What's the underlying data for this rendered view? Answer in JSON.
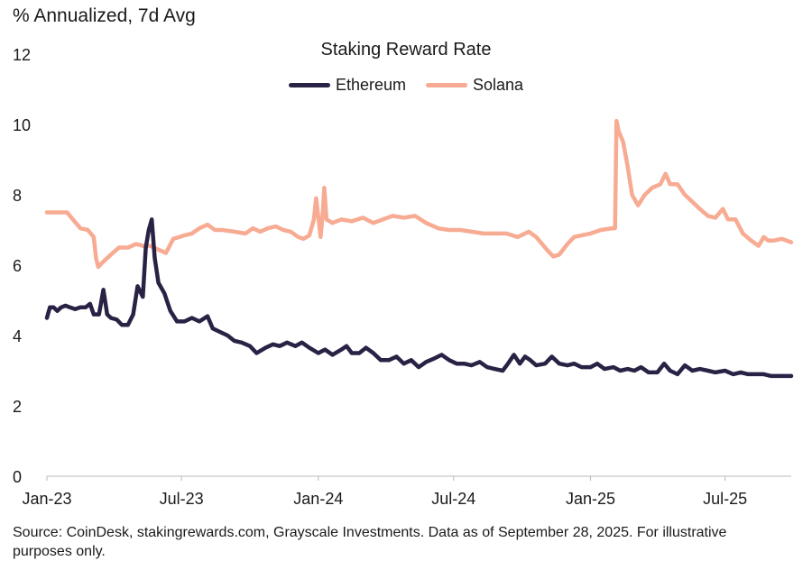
{
  "unit_label": "% Annualized, 7d Avg",
  "footnote": "Source: CoinDesk, stakingrewards.com, Grayscale Investments. Data as of September 28, 2025. For illustrative purposes only.",
  "chart_data": {
    "type": "line",
    "title": "Staking Reward Rate",
    "xlabel": "",
    "ylabel": "% Annualized, 7d Avg",
    "ylim": [
      0,
      12
    ],
    "yticks": [
      0,
      2,
      4,
      6,
      8,
      10,
      12
    ],
    "xlim": [
      "2023-01-01",
      "2025-09-28"
    ],
    "xticks": [
      {
        "date": "2023-01-01",
        "label": "Jan-23"
      },
      {
        "date": "2023-07-01",
        "label": "Jul-23"
      },
      {
        "date": "2024-01-01",
        "label": "Jan-24"
      },
      {
        "date": "2024-07-01",
        "label": "Jul-24"
      },
      {
        "date": "2025-01-01",
        "label": "Jan-25"
      },
      {
        "date": "2025-07-01",
        "label": "Jul-25"
      }
    ],
    "grid": false,
    "legend": "top-center",
    "series": [
      {
        "name": "Ethereum",
        "color": "#2a2245",
        "points": [
          [
            "2023-01-01",
            4.5
          ],
          [
            "2023-01-05",
            4.8
          ],
          [
            "2023-01-10",
            4.8
          ],
          [
            "2023-01-15",
            4.7
          ],
          [
            "2023-01-20",
            4.8
          ],
          [
            "2023-01-26",
            4.85
          ],
          [
            "2023-02-01",
            4.8
          ],
          [
            "2023-02-08",
            4.75
          ],
          [
            "2023-02-15",
            4.8
          ],
          [
            "2023-02-22",
            4.8
          ],
          [
            "2023-02-28",
            4.9
          ],
          [
            "2023-03-05",
            4.6
          ],
          [
            "2023-03-12",
            4.6
          ],
          [
            "2023-03-18",
            5.3
          ],
          [
            "2023-03-23",
            4.6
          ],
          [
            "2023-03-28",
            4.5
          ],
          [
            "2023-04-05",
            4.45
          ],
          [
            "2023-04-12",
            4.3
          ],
          [
            "2023-04-20",
            4.3
          ],
          [
            "2023-04-27",
            4.6
          ],
          [
            "2023-05-03",
            5.4
          ],
          [
            "2023-05-10",
            5.1
          ],
          [
            "2023-05-14",
            6.5
          ],
          [
            "2023-05-18",
            7.0
          ],
          [
            "2023-05-22",
            7.3
          ],
          [
            "2023-05-26",
            6.2
          ],
          [
            "2023-05-31",
            5.5
          ],
          [
            "2023-06-08",
            5.2
          ],
          [
            "2023-06-16",
            4.7
          ],
          [
            "2023-06-25",
            4.4
          ],
          [
            "2023-07-05",
            4.4
          ],
          [
            "2023-07-15",
            4.5
          ],
          [
            "2023-07-25",
            4.4
          ],
          [
            "2023-08-05",
            4.55
          ],
          [
            "2023-08-12",
            4.2
          ],
          [
            "2023-08-22",
            4.1
          ],
          [
            "2023-09-01",
            4.0
          ],
          [
            "2023-09-10",
            3.85
          ],
          [
            "2023-09-20",
            3.8
          ],
          [
            "2023-10-01",
            3.7
          ],
          [
            "2023-10-10",
            3.5
          ],
          [
            "2023-10-22",
            3.65
          ],
          [
            "2023-11-01",
            3.75
          ],
          [
            "2023-11-10",
            3.7
          ],
          [
            "2023-11-20",
            3.8
          ],
          [
            "2023-12-01",
            3.7
          ],
          [
            "2023-12-10",
            3.8
          ],
          [
            "2023-12-20",
            3.65
          ],
          [
            "2024-01-01",
            3.5
          ],
          [
            "2024-01-10",
            3.6
          ],
          [
            "2024-01-20",
            3.45
          ],
          [
            "2024-02-01",
            3.6
          ],
          [
            "2024-02-08",
            3.7
          ],
          [
            "2024-02-15",
            3.5
          ],
          [
            "2024-02-25",
            3.5
          ],
          [
            "2024-03-05",
            3.65
          ],
          [
            "2024-03-15",
            3.5
          ],
          [
            "2024-03-25",
            3.3
          ],
          [
            "2024-04-05",
            3.3
          ],
          [
            "2024-04-15",
            3.4
          ],
          [
            "2024-04-25",
            3.2
          ],
          [
            "2024-05-05",
            3.3
          ],
          [
            "2024-05-15",
            3.1
          ],
          [
            "2024-05-25",
            3.25
          ],
          [
            "2024-06-05",
            3.35
          ],
          [
            "2024-06-15",
            3.45
          ],
          [
            "2024-06-25",
            3.3
          ],
          [
            "2024-07-05",
            3.2
          ],
          [
            "2024-07-15",
            3.2
          ],
          [
            "2024-07-25",
            3.15
          ],
          [
            "2024-08-05",
            3.25
          ],
          [
            "2024-08-15",
            3.1
          ],
          [
            "2024-08-25",
            3.05
          ],
          [
            "2024-09-05",
            3.0
          ],
          [
            "2024-09-12",
            3.2
          ],
          [
            "2024-09-20",
            3.45
          ],
          [
            "2024-09-28",
            3.2
          ],
          [
            "2024-10-05",
            3.4
          ],
          [
            "2024-10-12",
            3.3
          ],
          [
            "2024-10-20",
            3.15
          ],
          [
            "2024-11-01",
            3.2
          ],
          [
            "2024-11-10",
            3.4
          ],
          [
            "2024-11-20",
            3.2
          ],
          [
            "2024-12-01",
            3.15
          ],
          [
            "2024-12-10",
            3.2
          ],
          [
            "2024-12-20",
            3.1
          ],
          [
            "2025-01-01",
            3.1
          ],
          [
            "2025-01-10",
            3.2
          ],
          [
            "2025-01-20",
            3.05
          ],
          [
            "2025-02-01",
            3.1
          ],
          [
            "2025-02-10",
            3.0
          ],
          [
            "2025-02-20",
            3.05
          ],
          [
            "2025-03-01",
            3.0
          ],
          [
            "2025-03-10",
            3.1
          ],
          [
            "2025-03-20",
            2.95
          ],
          [
            "2025-04-01",
            2.95
          ],
          [
            "2025-04-10",
            3.2
          ],
          [
            "2025-04-18",
            3.0
          ],
          [
            "2025-04-28",
            2.9
          ],
          [
            "2025-05-08",
            3.15
          ],
          [
            "2025-05-18",
            3.0
          ],
          [
            "2025-05-28",
            3.05
          ],
          [
            "2025-06-08",
            3.0
          ],
          [
            "2025-06-18",
            2.95
          ],
          [
            "2025-07-01",
            3.0
          ],
          [
            "2025-07-12",
            2.9
          ],
          [
            "2025-07-22",
            2.95
          ],
          [
            "2025-08-01",
            2.9
          ],
          [
            "2025-08-12",
            2.9
          ],
          [
            "2025-08-22",
            2.9
          ],
          [
            "2025-09-01",
            2.85
          ],
          [
            "2025-09-12",
            2.85
          ],
          [
            "2025-09-28",
            2.85
          ]
        ]
      },
      {
        "name": "Solana",
        "color": "#f7ab92",
        "points": [
          [
            "2023-01-01",
            7.5
          ],
          [
            "2023-01-15",
            7.5
          ],
          [
            "2023-01-28",
            7.5
          ],
          [
            "2023-02-05",
            7.3
          ],
          [
            "2023-02-15",
            7.05
          ],
          [
            "2023-02-25",
            7.0
          ],
          [
            "2023-03-05",
            6.8
          ],
          [
            "2023-03-08",
            6.2
          ],
          [
            "2023-03-11",
            5.95
          ],
          [
            "2023-03-18",
            6.1
          ],
          [
            "2023-03-28",
            6.3
          ],
          [
            "2023-04-08",
            6.5
          ],
          [
            "2023-04-20",
            6.5
          ],
          [
            "2023-05-01",
            6.6
          ],
          [
            "2023-05-10",
            6.55
          ],
          [
            "2023-05-20",
            6.55
          ],
          [
            "2023-05-30",
            6.45
          ],
          [
            "2023-06-10",
            6.35
          ],
          [
            "2023-06-20",
            6.75
          ],
          [
            "2023-06-28",
            6.8
          ],
          [
            "2023-07-05",
            6.85
          ],
          [
            "2023-07-15",
            6.9
          ],
          [
            "2023-07-25",
            7.05
          ],
          [
            "2023-08-05",
            7.15
          ],
          [
            "2023-08-15",
            7.0
          ],
          [
            "2023-08-25",
            7.0
          ],
          [
            "2023-09-10",
            6.95
          ],
          [
            "2023-09-25",
            6.9
          ],
          [
            "2023-10-05",
            7.05
          ],
          [
            "2023-10-15",
            6.95
          ],
          [
            "2023-10-25",
            7.05
          ],
          [
            "2023-11-05",
            7.1
          ],
          [
            "2023-11-15",
            7.0
          ],
          [
            "2023-11-25",
            6.95
          ],
          [
            "2023-12-05",
            6.8
          ],
          [
            "2023-12-12",
            6.75
          ],
          [
            "2023-12-20",
            6.85
          ],
          [
            "2023-12-26",
            7.3
          ],
          [
            "2023-12-29",
            7.9
          ],
          [
            "2024-01-02",
            7.2
          ],
          [
            "2024-01-04",
            6.8
          ],
          [
            "2024-01-07",
            7.5
          ],
          [
            "2024-01-09",
            8.2
          ],
          [
            "2024-01-12",
            7.3
          ],
          [
            "2024-01-20",
            7.2
          ],
          [
            "2024-02-01",
            7.3
          ],
          [
            "2024-02-15",
            7.25
          ],
          [
            "2024-03-01",
            7.35
          ],
          [
            "2024-03-15",
            7.2
          ],
          [
            "2024-03-28",
            7.3
          ],
          [
            "2024-04-10",
            7.4
          ],
          [
            "2024-04-25",
            7.35
          ],
          [
            "2024-05-10",
            7.4
          ],
          [
            "2024-05-25",
            7.2
          ],
          [
            "2024-06-10",
            7.05
          ],
          [
            "2024-06-25",
            7.0
          ],
          [
            "2024-07-10",
            7.0
          ],
          [
            "2024-07-25",
            6.95
          ],
          [
            "2024-08-10",
            6.9
          ],
          [
            "2024-08-25",
            6.9
          ],
          [
            "2024-09-10",
            6.9
          ],
          [
            "2024-09-25",
            6.8
          ],
          [
            "2024-10-10",
            6.95
          ],
          [
            "2024-10-20",
            6.8
          ],
          [
            "2024-10-28",
            6.6
          ],
          [
            "2024-11-05",
            6.4
          ],
          [
            "2024-11-12",
            6.25
          ],
          [
            "2024-11-20",
            6.3
          ],
          [
            "2024-12-01",
            6.6
          ],
          [
            "2024-12-10",
            6.8
          ],
          [
            "2024-12-20",
            6.85
          ],
          [
            "2025-01-01",
            6.9
          ],
          [
            "2025-01-15",
            7.0
          ],
          [
            "2025-01-30",
            7.05
          ],
          [
            "2025-02-03",
            7.05
          ],
          [
            "2025-02-05",
            10.1
          ],
          [
            "2025-02-08",
            9.8
          ],
          [
            "2025-02-14",
            9.5
          ],
          [
            "2025-02-20",
            8.8
          ],
          [
            "2025-02-26",
            8.0
          ],
          [
            "2025-03-06",
            7.7
          ],
          [
            "2025-03-15",
            8.0
          ],
          [
            "2025-03-25",
            8.2
          ],
          [
            "2025-04-05",
            8.3
          ],
          [
            "2025-04-12",
            8.6
          ],
          [
            "2025-04-18",
            8.3
          ],
          [
            "2025-04-28",
            8.3
          ],
          [
            "2025-05-08",
            8.0
          ],
          [
            "2025-05-18",
            7.8
          ],
          [
            "2025-05-28",
            7.6
          ],
          [
            "2025-06-08",
            7.4
          ],
          [
            "2025-06-18",
            7.35
          ],
          [
            "2025-06-28",
            7.6
          ],
          [
            "2025-07-05",
            7.3
          ],
          [
            "2025-07-15",
            7.3
          ],
          [
            "2025-07-25",
            6.9
          ],
          [
            "2025-08-05",
            6.7
          ],
          [
            "2025-08-15",
            6.55
          ],
          [
            "2025-08-22",
            6.8
          ],
          [
            "2025-08-28",
            6.7
          ],
          [
            "2025-09-05",
            6.7
          ],
          [
            "2025-09-15",
            6.75
          ],
          [
            "2025-09-28",
            6.65
          ]
        ]
      }
    ]
  }
}
